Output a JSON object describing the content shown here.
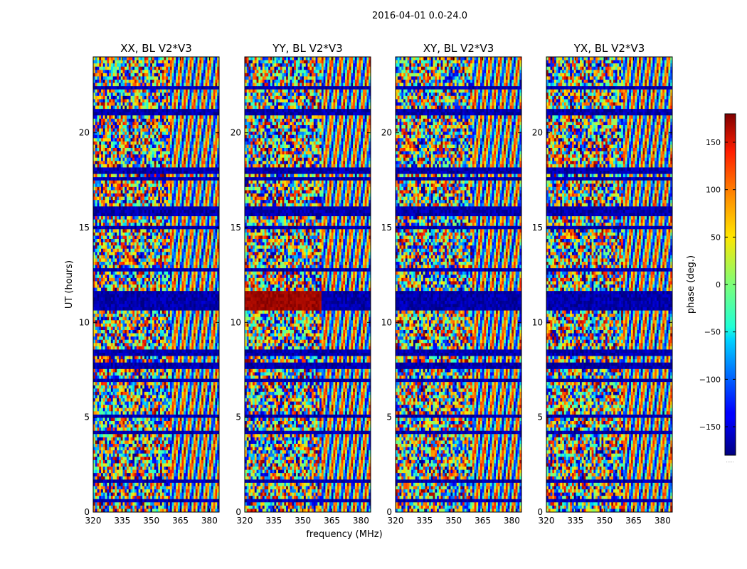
{
  "figure": {
    "suptitle": "2016-04-01 0.0-24.0",
    "xlabel": "frequency (MHz)",
    "ylabel": "UT (hours)",
    "colorbar_label": "phase (deg.)",
    "colorbar_footnote": "....."
  },
  "chart_data": [
    {
      "type": "heatmap",
      "title": "XX, BL V2*V3",
      "xlim": [
        320,
        385
      ],
      "ylim": [
        0,
        24
      ],
      "xticks": [
        320,
        335,
        350,
        365,
        380
      ],
      "yticks": [
        0,
        5,
        10,
        15,
        20
      ],
      "colorscale": "jet",
      "zlim": [
        -180,
        180
      ],
      "flagged_bands_hours": [
        [
          0.6,
          0.7
        ],
        [
          1.55,
          1.65
        ],
        [
          3.4,
          3.5
        ],
        [
          4.1,
          4.2
        ],
        [
          5.0,
          5.2
        ],
        [
          5.95,
          6.05
        ],
        [
          6.9,
          7.0
        ],
        [
          7.55,
          7.85
        ],
        [
          8.2,
          8.6
        ],
        [
          9.05,
          9.15
        ],
        [
          10.6,
          11.6
        ],
        [
          12.7,
          12.8
        ],
        [
          13.8,
          13.9
        ],
        [
          14.95,
          15.05
        ],
        [
          15.6,
          16.1
        ],
        [
          16.55,
          16.65
        ],
        [
          17.5,
          17.7
        ],
        [
          17.85,
          18.1
        ],
        [
          21.0,
          21.2
        ],
        [
          22.3,
          22.4
        ],
        [
          23.1,
          23.2
        ]
      ]
    },
    {
      "type": "heatmap",
      "title": "YY, BL V2*V3",
      "xlim": [
        320,
        385
      ],
      "ylim": [
        0,
        24
      ],
      "xticks": [
        320,
        335,
        350,
        365,
        380
      ],
      "yticks": [
        0,
        5,
        10,
        15,
        20
      ],
      "colorscale": "jet",
      "zlim": [
        -180,
        180
      ],
      "flagged_bands_hours": [
        [
          0.6,
          0.7
        ],
        [
          1.55,
          1.65
        ],
        [
          3.4,
          3.5
        ],
        [
          4.1,
          4.2
        ],
        [
          5.0,
          5.2
        ],
        [
          5.95,
          6.05
        ],
        [
          6.9,
          7.0
        ],
        [
          7.55,
          7.85
        ],
        [
          8.2,
          8.6
        ],
        [
          9.05,
          9.15
        ],
        [
          10.6,
          11.6
        ],
        [
          12.7,
          12.8
        ],
        [
          13.8,
          13.9
        ],
        [
          14.95,
          15.05
        ],
        [
          15.6,
          16.1
        ],
        [
          16.55,
          16.65
        ],
        [
          17.5,
          17.7
        ],
        [
          17.85,
          18.1
        ],
        [
          21.0,
          21.2
        ],
        [
          22.3,
          22.4
        ],
        [
          23.1,
          23.2
        ]
      ]
    },
    {
      "type": "heatmap",
      "title": "XY, BL V2*V3",
      "xlim": [
        320,
        385
      ],
      "ylim": [
        0,
        24
      ],
      "xticks": [
        320,
        335,
        350,
        365,
        380
      ],
      "yticks": [
        0,
        5,
        10,
        15,
        20
      ],
      "colorscale": "jet",
      "zlim": [
        -180,
        180
      ],
      "flagged_bands_hours": [
        [
          0.6,
          0.7
        ],
        [
          1.55,
          1.65
        ],
        [
          3.4,
          3.5
        ],
        [
          4.1,
          4.2
        ],
        [
          5.0,
          5.2
        ],
        [
          5.95,
          6.05
        ],
        [
          6.9,
          7.0
        ],
        [
          7.55,
          7.85
        ],
        [
          8.2,
          8.6
        ],
        [
          9.05,
          9.15
        ],
        [
          10.6,
          11.6
        ],
        [
          12.7,
          12.8
        ],
        [
          13.8,
          13.9
        ],
        [
          14.95,
          15.05
        ],
        [
          15.6,
          16.1
        ],
        [
          16.55,
          16.65
        ],
        [
          17.5,
          17.7
        ],
        [
          17.85,
          18.1
        ],
        [
          21.0,
          21.2
        ],
        [
          22.3,
          22.4
        ],
        [
          23.1,
          23.2
        ]
      ]
    },
    {
      "type": "heatmap",
      "title": "YX, BL V2*V3",
      "xlim": [
        320,
        385
      ],
      "ylim": [
        0,
        24
      ],
      "xticks": [
        320,
        335,
        350,
        365,
        380
      ],
      "yticks": [
        0,
        5,
        10,
        15,
        20
      ],
      "colorscale": "jet",
      "zlim": [
        -180,
        180
      ],
      "flagged_bands_hours": [
        [
          0.6,
          0.7
        ],
        [
          1.55,
          1.65
        ],
        [
          3.4,
          3.5
        ],
        [
          4.1,
          4.2
        ],
        [
          5.0,
          5.2
        ],
        [
          5.95,
          6.05
        ],
        [
          6.9,
          7.0
        ],
        [
          7.55,
          7.85
        ],
        [
          8.2,
          8.6
        ],
        [
          9.05,
          9.15
        ],
        [
          10.6,
          11.6
        ],
        [
          12.7,
          12.8
        ],
        [
          13.8,
          13.9
        ],
        [
          14.95,
          15.05
        ],
        [
          15.6,
          16.1
        ],
        [
          16.55,
          16.65
        ],
        [
          17.5,
          17.7
        ],
        [
          17.85,
          18.1
        ],
        [
          21.0,
          21.2
        ],
        [
          22.3,
          22.4
        ],
        [
          23.1,
          23.2
        ]
      ]
    }
  ],
  "colorbar": {
    "zlim": [
      -180,
      180
    ],
    "ticks": [
      -150,
      -100,
      -50,
      0,
      50,
      100,
      150
    ],
    "tick_labels": [
      "−150",
      "−100",
      "−50",
      "0",
      "50",
      "100",
      "150"
    ]
  }
}
